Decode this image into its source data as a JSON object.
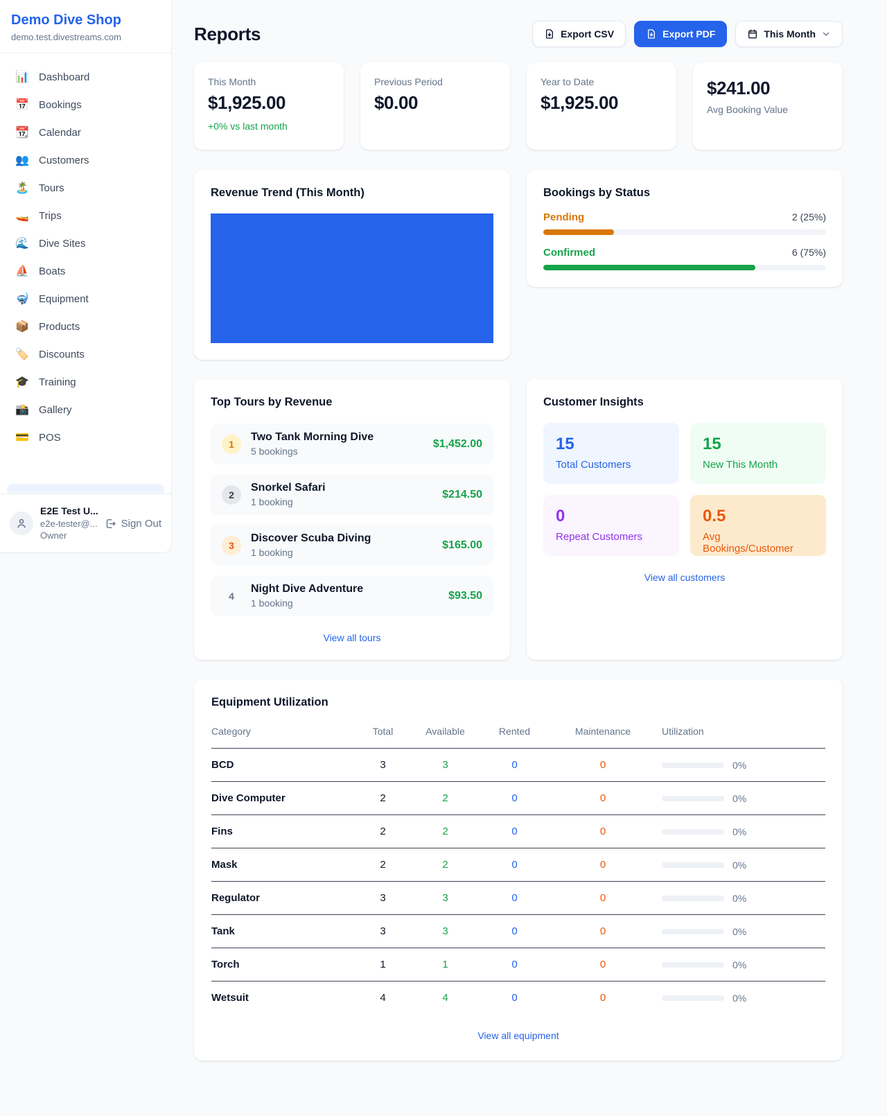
{
  "colors": {
    "accent": "#2563eb",
    "green": "#16a34a",
    "orange": "#d97706",
    "orange_red": "#ea580c",
    "purple": "#9333ea"
  },
  "sidebar": {
    "shop_name": "Demo Dive Shop",
    "shop_domain": "demo.test.divestreams.com",
    "items": [
      {
        "icon": "📊",
        "label": "Dashboard"
      },
      {
        "icon": "📅",
        "label": "Bookings"
      },
      {
        "icon": "📆",
        "label": "Calendar"
      },
      {
        "icon": "👥",
        "label": "Customers"
      },
      {
        "icon": "🏝️",
        "label": "Tours"
      },
      {
        "icon": "🚤",
        "label": "Trips"
      },
      {
        "icon": "🌊",
        "label": "Dive Sites"
      },
      {
        "icon": "⛵",
        "label": "Boats"
      },
      {
        "icon": "🤿",
        "label": "Equipment"
      },
      {
        "icon": "📦",
        "label": "Products"
      },
      {
        "icon": "🏷️",
        "label": "Discounts"
      },
      {
        "icon": "🎓",
        "label": "Training"
      },
      {
        "icon": "📸",
        "label": "Gallery"
      },
      {
        "icon": "💳",
        "label": "POS"
      }
    ],
    "user": {
      "name": "E2E Test U...",
      "email": "e2e-tester@...",
      "role": "Owner",
      "sign_out": "Sign Out"
    }
  },
  "header": {
    "title": "Reports",
    "export_csv_label": "Export CSV",
    "export_pdf_label": "Export PDF",
    "period_label": "This Month"
  },
  "stats": [
    {
      "label": "This Month",
      "value": "$1,925.00",
      "delta": "+0% vs last month"
    },
    {
      "label": "Previous Period",
      "value": "$0.00"
    },
    {
      "label": "Year to Date",
      "value": "$1,925.00"
    },
    {
      "label": "Avg Booking Value",
      "value": "$241.00"
    }
  ],
  "revenue_trend": {
    "title": "Revenue Trend (This Month)"
  },
  "chart_data": [
    {
      "type": "bar",
      "title": "Revenue Trend (This Month)",
      "categories": [
        "This Month"
      ],
      "values": [
        1925
      ],
      "xlabel": "",
      "ylabel": "",
      "bar_color": "#2563eb",
      "note": "single solid blue bar filling the entire plot area; no axes, ticks, gridlines or labels visible"
    },
    {
      "type": "bar",
      "title": "Bookings by Status",
      "categories": [
        "Pending",
        "Confirmed"
      ],
      "values": [
        2,
        6
      ],
      "percent": [
        25,
        75
      ],
      "colors": [
        "#d97706",
        "#16a34a"
      ],
      "layout": "horizontal progress bars with count labels"
    }
  ],
  "bookings_by_status": {
    "title": "Bookings by Status",
    "rows": [
      {
        "label": "Pending",
        "display": "2 (25%)",
        "pct": 25
      },
      {
        "label": "Confirmed",
        "display": "6 (75%)",
        "pct": 75
      }
    ]
  },
  "top_tours": {
    "title": "Top Tours by Revenue",
    "rows": [
      {
        "rank": "1",
        "name": "Two Tank Morning Dive",
        "sub": "5 bookings",
        "value": "$1,452.00"
      },
      {
        "rank": "2",
        "name": "Snorkel Safari",
        "sub": "1 booking",
        "value": "$214.50"
      },
      {
        "rank": "3",
        "name": "Discover Scuba Diving",
        "sub": "1 booking",
        "value": "$165.00"
      },
      {
        "rank": "4",
        "name": "Night Dive Adventure",
        "sub": "1 booking",
        "value": "$93.50"
      }
    ],
    "view_all": "View all tours"
  },
  "customer_insights": {
    "title": "Customer Insights",
    "tiles": [
      {
        "value": "15",
        "label": "Total Customers"
      },
      {
        "value": "15",
        "label": "New This Month"
      },
      {
        "value": "0",
        "label": "Repeat Customers"
      },
      {
        "value": "0.5",
        "label": "Avg Bookings/Customer"
      }
    ],
    "view_all": "View all customers"
  },
  "equipment": {
    "title": "Equipment Utilization",
    "columns": [
      "Category",
      "Total",
      "Available",
      "Rented",
      "Maintenance",
      "Utilization"
    ],
    "rows": [
      {
        "category": "BCD",
        "total": "3",
        "available": "3",
        "rented": "0",
        "maintenance": "0",
        "utilization": "0%",
        "utilization_pct": 0
      },
      {
        "category": "Dive Computer",
        "total": "2",
        "available": "2",
        "rented": "0",
        "maintenance": "0",
        "utilization": "0%",
        "utilization_pct": 0
      },
      {
        "category": "Fins",
        "total": "2",
        "available": "2",
        "rented": "0",
        "maintenance": "0",
        "utilization": "0%",
        "utilization_pct": 0
      },
      {
        "category": "Mask",
        "total": "2",
        "available": "2",
        "rented": "0",
        "maintenance": "0",
        "utilization": "0%",
        "utilization_pct": 0
      },
      {
        "category": "Regulator",
        "total": "3",
        "available": "3",
        "rented": "0",
        "maintenance": "0",
        "utilization": "0%",
        "utilization_pct": 0
      },
      {
        "category": "Tank",
        "total": "3",
        "available": "3",
        "rented": "0",
        "maintenance": "0",
        "utilization": "0%",
        "utilization_pct": 0
      },
      {
        "category": "Torch",
        "total": "1",
        "available": "1",
        "rented": "0",
        "maintenance": "0",
        "utilization": "0%",
        "utilization_pct": 0
      },
      {
        "category": "Wetsuit",
        "total": "4",
        "available": "4",
        "rented": "0",
        "maintenance": "0",
        "utilization": "0%",
        "utilization_pct": 0
      }
    ],
    "view_all": "View all equipment"
  }
}
